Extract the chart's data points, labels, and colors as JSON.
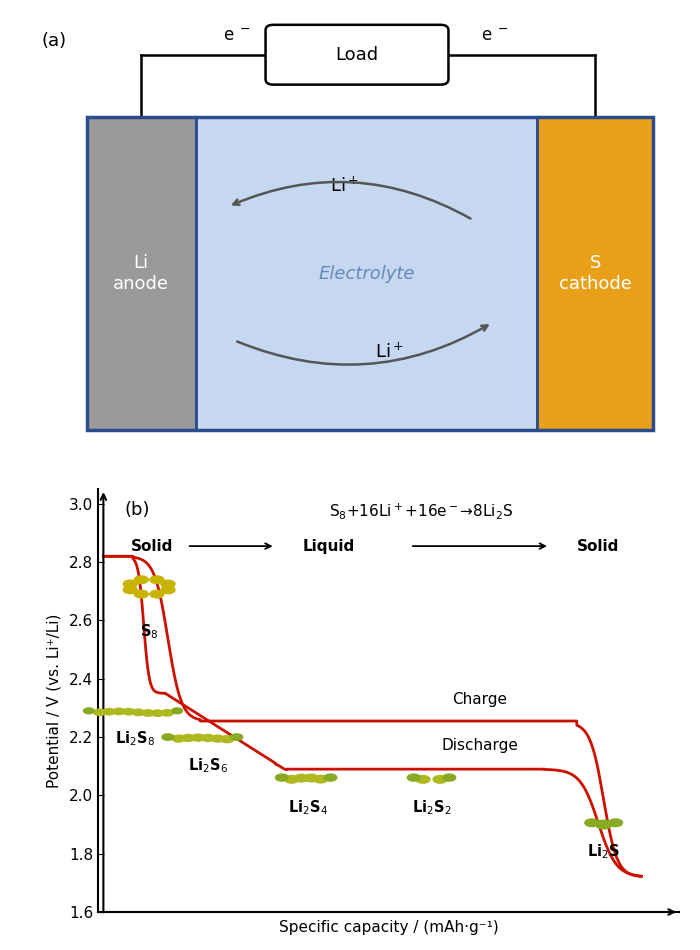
{
  "fig_width": 7.0,
  "fig_height": 9.5,
  "panel_a_label": "(a)",
  "panel_b_label": "(b)",
  "anode_color": "#9A9A9A",
  "anode_label": "Li\nanode",
  "cathode_color": "#E8A018",
  "cathode_label": "S\ncathode",
  "electrolyte_color": "#C5D8F0",
  "electrolyte_label": "Electrolyte",
  "battery_border_color": "#2B4B8C",
  "load_label": "Load",
  "curve_color": "#CC1100",
  "ylabel": "Potential / V (vs. Li⁺/Li)",
  "xlabel": "Specific capacity / (mAh·g⁻¹)",
  "reaction_eq": "S$_8$+16Li$^+$+16e$^-$→8Li$_2$S",
  "charge_label": "Charge",
  "discharge_label": "Discharge",
  "ylim": [
    1.6,
    3.05
  ],
  "yticks": [
    1.6,
    1.8,
    2.0,
    2.2,
    2.4,
    2.6,
    2.8,
    3.0
  ],
  "s8_color": "#C8B400",
  "li2sx_color": "#B0B820",
  "li_color": "#88AA22"
}
